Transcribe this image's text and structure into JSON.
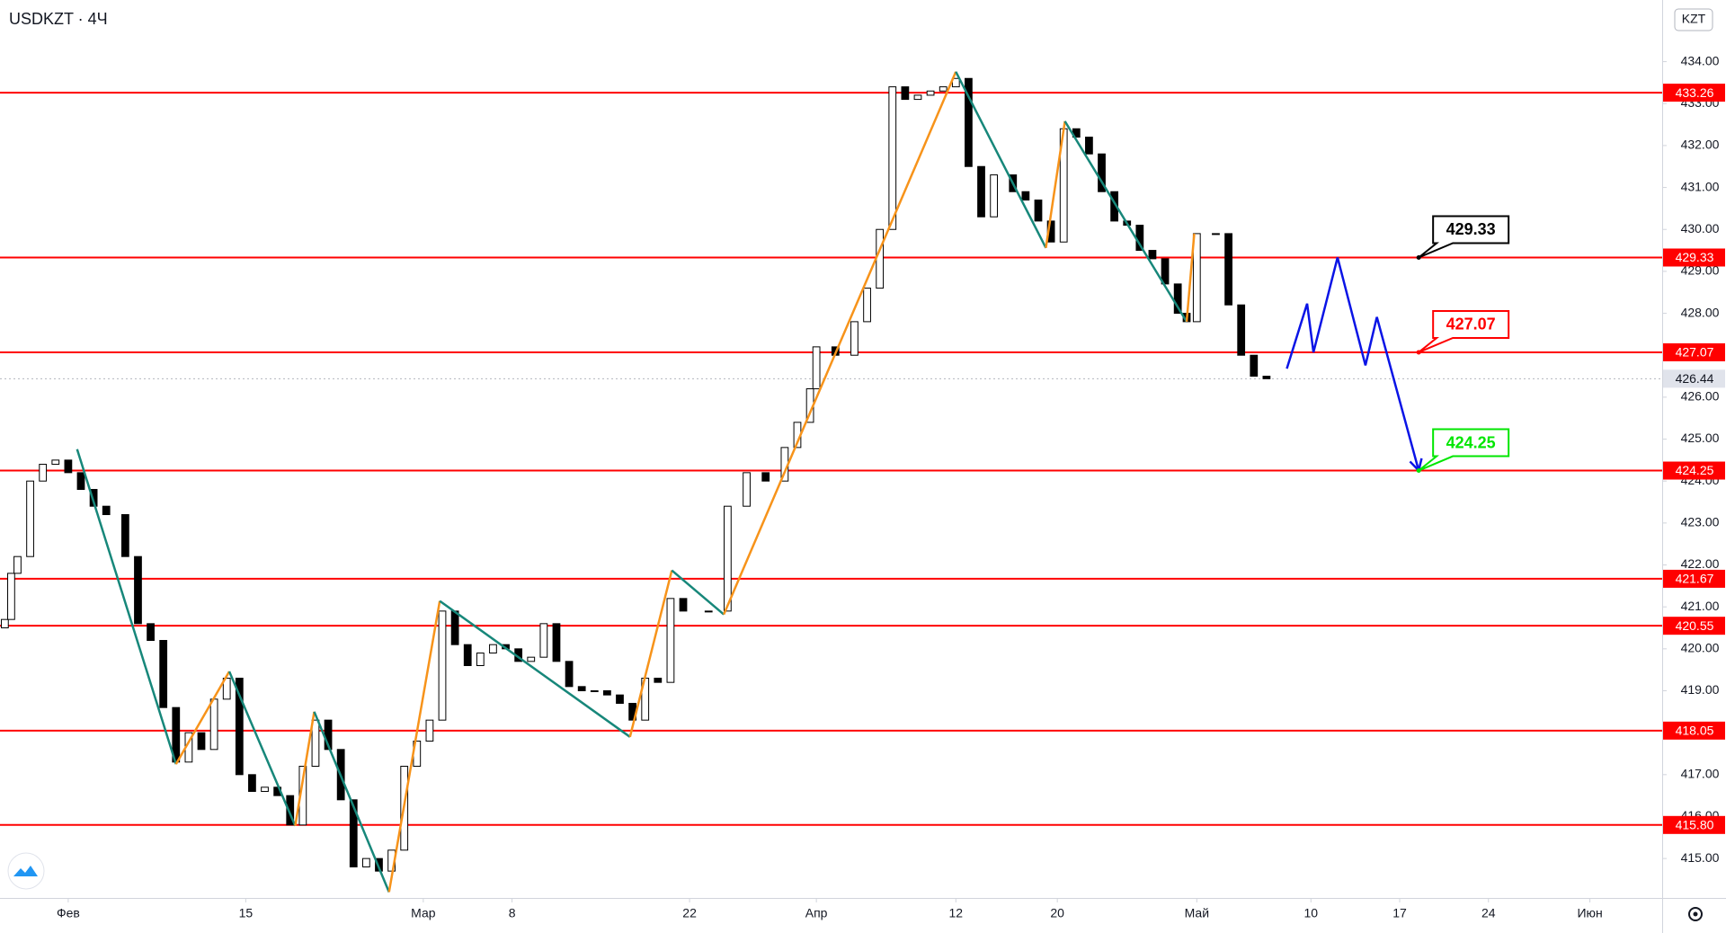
{
  "chart_data": {
    "type": "candlestick",
    "symbol": "USDKZT · 4Ч",
    "currency": "KZT",
    "x": [
      -5,
      -4.5,
      -4,
      -3,
      -2,
      -1,
      0,
      1,
      2,
      3,
      4.5,
      5.5,
      6.5,
      7.5,
      8.5,
      9.5,
      10.5,
      11.5,
      12.5,
      13.5,
      14.5,
      15.5,
      16.5,
      17.5,
      18.5,
      19.5,
      20.5,
      21.5,
      22.5,
      23.5,
      24.5,
      25.5,
      26.5,
      27.5,
      28.5,
      29.5,
      30.5,
      31.5,
      32.5,
      33.5,
      34.5,
      35.5,
      36.5,
      37.5,
      38.5,
      39.5,
      40.5,
      41.5,
      42.5,
      43.5,
      44.5,
      45.5,
      46.5,
      47.5,
      48.5,
      50.5,
      52,
      53.5,
      55,
      56.5,
      57.5,
      58.5,
      59,
      60.5,
      62,
      63,
      64,
      65,
      66,
      67,
      68,
      69,
      70,
      71,
      72,
      73,
      74.5,
      75.5,
      76.5,
      77.5,
      78.5,
      79.5,
      80.5,
      81.5,
      82.5,
      83.5,
      84.5,
      85.5,
      86.5,
      87.5,
      88.2,
      89,
      90.5,
      91.5,
      92.5,
      93.5,
      94.5
    ],
    "open": [
      420.5,
      420.7,
      421.8,
      422.2,
      424.0,
      424.4,
      424.5,
      424.2,
      423.8,
      423.4,
      423.2,
      422.2,
      420.6,
      420.2,
      418.6,
      417.3,
      418.0,
      417.6,
      418.8,
      419.3,
      417.0,
      416.6,
      416.7,
      416.5,
      415.8,
      417.2,
      418.3,
      417.6,
      416.4,
      414.8,
      415.0,
      414.7,
      415.2,
      417.2,
      417.8,
      418.3,
      420.9,
      420.1,
      419.6,
      419.9,
      420.1,
      420.0,
      419.7,
      419.8,
      420.6,
      419.7,
      419.1,
      419.0,
      419.0,
      418.9,
      418.7,
      418.3,
      419.3,
      419.2,
      421.2,
      420.9,
      420.9,
      423.4,
      424.2,
      424.0,
      424.8,
      425.4,
      426.2,
      427.2,
      427.0,
      427.8,
      428.6,
      430.0,
      433.4,
      433.1,
      433.2,
      433.3,
      433.4,
      433.6,
      431.5,
      430.3,
      431.3,
      430.9,
      430.7,
      430.2,
      429.7,
      432.4,
      432.2,
      431.8,
      430.9,
      430.2,
      430.1,
      429.5,
      429.3,
      428.7,
      428.0,
      427.8,
      429.9,
      429.9,
      428.2,
      427.0,
      426.5
    ],
    "close": [
      420.7,
      421.8,
      422.2,
      424.0,
      424.4,
      424.5,
      424.2,
      423.8,
      423.4,
      423.2,
      422.2,
      420.6,
      420.2,
      418.6,
      417.3,
      418.0,
      417.6,
      418.8,
      419.3,
      417.0,
      416.6,
      416.7,
      416.5,
      415.8,
      417.2,
      418.3,
      417.6,
      416.4,
      414.8,
      415.0,
      414.7,
      415.2,
      417.2,
      417.8,
      418.3,
      420.9,
      420.1,
      419.6,
      419.9,
      420.1,
      420.0,
      419.7,
      419.8,
      420.6,
      419.7,
      419.1,
      419.0,
      419.0,
      418.9,
      418.7,
      418.3,
      419.3,
      419.2,
      421.2,
      420.9,
      420.9,
      423.4,
      424.2,
      424.0,
      424.8,
      425.4,
      426.2,
      427.2,
      427.0,
      427.8,
      428.6,
      430.0,
      433.4,
      433.1,
      433.2,
      433.3,
      433.4,
      433.6,
      431.5,
      430.3,
      431.3,
      430.9,
      430.7,
      430.2,
      429.7,
      432.4,
      432.2,
      431.8,
      430.9,
      430.2,
      430.1,
      429.5,
      429.3,
      428.7,
      428.0,
      427.8,
      429.9,
      429.9,
      428.2,
      427.0,
      426.5,
      426.44
    ],
    "up_color": "#ffffff",
    "down_color": "#000000",
    "xlim": [
      -5.38,
      125.7
    ],
    "xticks": [
      {
        "value": 0,
        "label": "Фев"
      },
      {
        "value": 14,
        "label": "15"
      },
      {
        "value": 28,
        "label": "Мар"
      },
      {
        "value": 35,
        "label": "8"
      },
      {
        "value": 49,
        "label": "22"
      },
      {
        "value": 59,
        "label": "Апр"
      },
      {
        "value": 70,
        "label": "12"
      },
      {
        "value": 78,
        "label": "20"
      },
      {
        "value": 89,
        "label": "Май"
      },
      {
        "value": 98,
        "label": "10"
      },
      {
        "value": 105,
        "label": "17"
      },
      {
        "value": 112,
        "label": "24"
      },
      {
        "value": 120,
        "label": "Июн"
      }
    ],
    "ylim": [
      414.06,
      435.47
    ],
    "yticks": [
      {
        "value": 415,
        "label": "415.00"
      },
      {
        "value": 416,
        "label": "416.00"
      },
      {
        "value": 417,
        "label": "417.00"
      },
      {
        "value": 418,
        "label": "418.00"
      },
      {
        "value": 419,
        "label": "419.00"
      },
      {
        "value": 420,
        "label": "420.00"
      },
      {
        "value": 421,
        "label": "421.00"
      },
      {
        "value": 422,
        "label": "422.00"
      },
      {
        "value": 423,
        "label": "423.00"
      },
      {
        "value": 424,
        "label": "424.00"
      },
      {
        "value": 425,
        "label": "425.00"
      },
      {
        "value": 426,
        "label": "426.00"
      },
      {
        "value": 427,
        "label": "427.00"
      },
      {
        "value": 428,
        "label": "428.00"
      },
      {
        "value": 429,
        "label": "429.00"
      },
      {
        "value": 430,
        "label": "430.00"
      },
      {
        "value": 431,
        "label": "431.00"
      },
      {
        "value": 432,
        "label": "432.00"
      },
      {
        "value": 433,
        "label": "433.00"
      },
      {
        "value": 434,
        "label": "434.00"
      }
    ],
    "levels": {
      "color": "#ff0000",
      "values": [
        433.26,
        429.33,
        427.07,
        424.25,
        421.67,
        420.55,
        418.05,
        415.8
      ],
      "value_labels": [
        "433.26",
        "429.33",
        "427.07",
        "424.25",
        "421.67",
        "420.55",
        "418.05",
        "415.80"
      ]
    },
    "last_price": {
      "value": 426.44,
      "color": "#b2b5be"
    },
    "zigzag": {
      "up_color": "#f7931a",
      "down_color": "#17877a",
      "x": [
        0.7,
        8.5,
        12.7,
        17.9,
        19.4,
        25.3,
        29.3,
        44.3,
        47.6,
        51.7,
        70.0,
        77.1,
        78.6,
        88.2,
        88.8
      ],
      "y": [
        424.76,
        417.25,
        419.46,
        415.78,
        418.5,
        414.2,
        421.14,
        417.9,
        421.87,
        420.82,
        433.76,
        429.56,
        432.58,
        427.8,
        429.9
      ]
    },
    "projection": {
      "color": "#0a14e6",
      "x": [
        96.1,
        97.7,
        98.2,
        100.1,
        102.3,
        103.2,
        106.5
      ],
      "y": [
        426.68,
        428.23,
        427.07,
        429.33,
        426.76,
        427.91,
        424.25
      ]
    },
    "target_x": 106.5,
    "targets": [
      {
        "value": 429.33,
        "color": "#000000"
      },
      {
        "value": 427.07,
        "color": "#ff0000"
      },
      {
        "value": 424.25,
        "color": "#00e600"
      }
    ]
  }
}
